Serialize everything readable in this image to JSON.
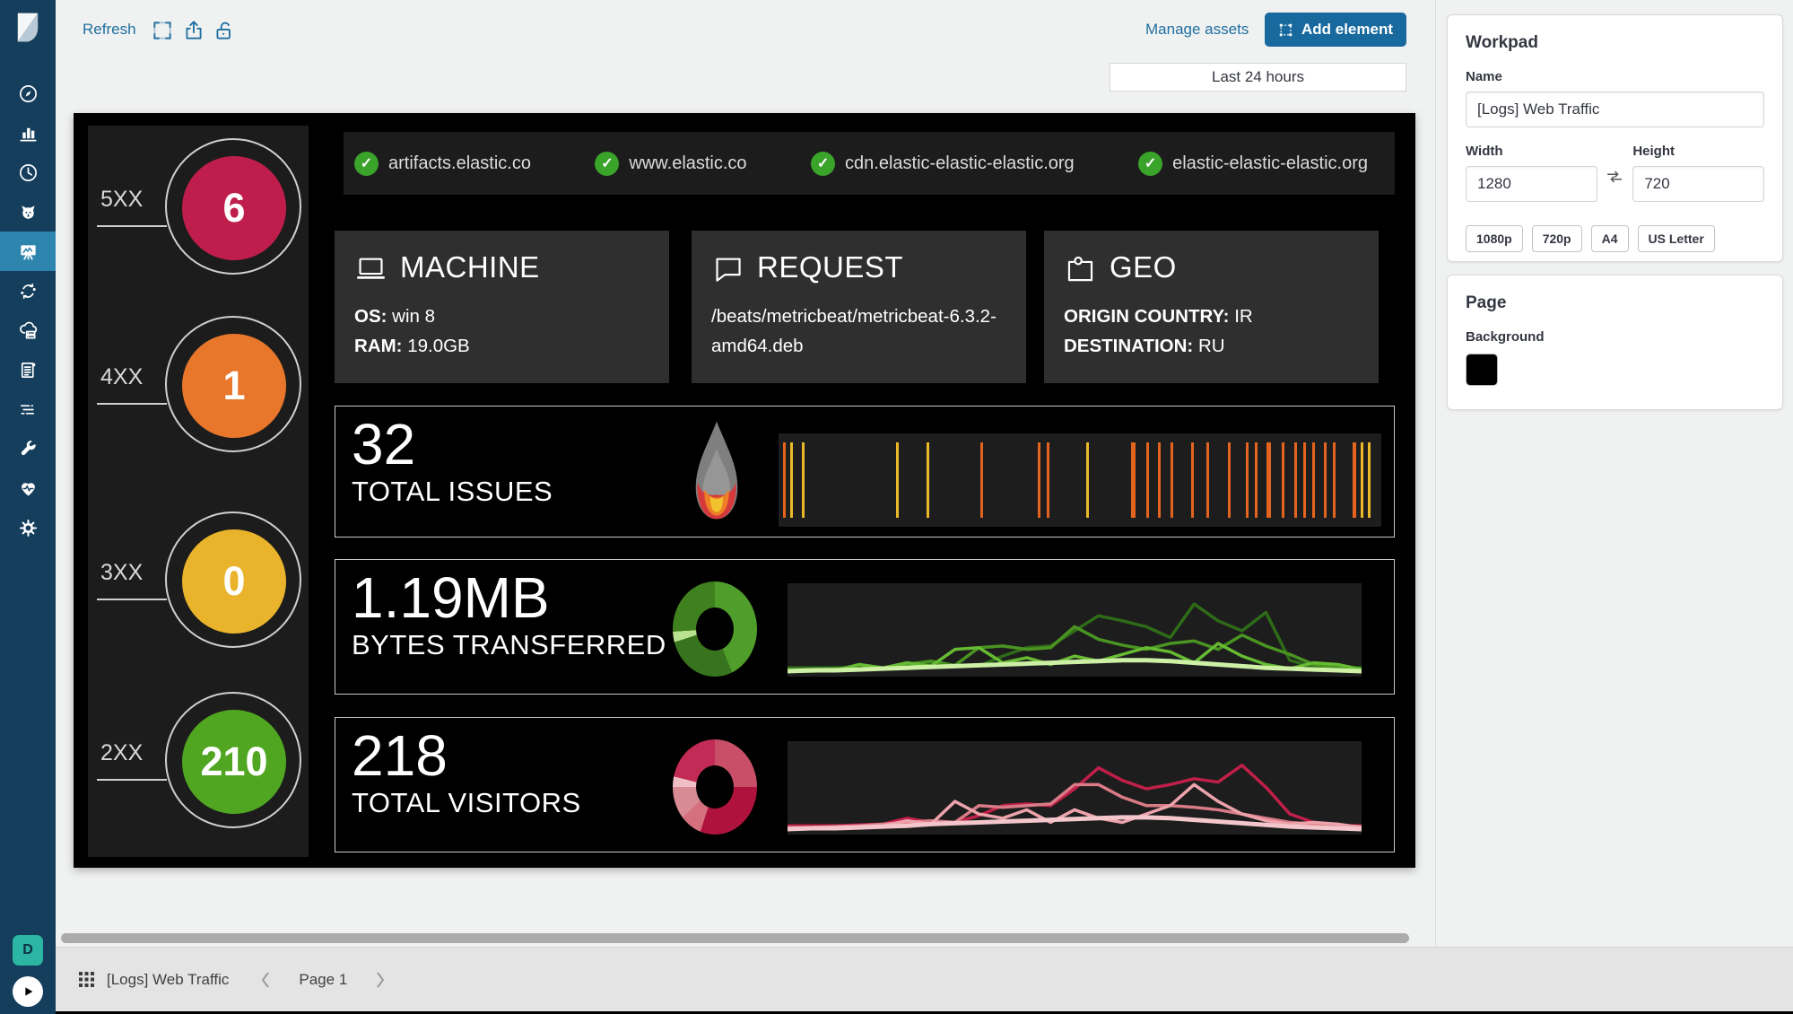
{
  "toolbar": {
    "refresh": "Refresh",
    "manage_assets": "Manage assets",
    "add_element": "Add element",
    "time_filter": "Last 24 hours"
  },
  "sidebar": {
    "avatar": "D",
    "items": [
      {
        "name": "discover",
        "icon": "compass",
        "active": false
      },
      {
        "name": "visualize",
        "icon": "bar-chart",
        "active": false
      },
      {
        "name": "timelion",
        "icon": "clock",
        "active": false
      },
      {
        "name": "uptime",
        "icon": "dog",
        "active": false
      },
      {
        "name": "canvas",
        "icon": "easel",
        "active": true
      },
      {
        "name": "machine-learning",
        "icon": "cycle",
        "active": false
      },
      {
        "name": "infrastructure",
        "icon": "cloud-servers",
        "active": false
      },
      {
        "name": "logs",
        "icon": "document",
        "active": false
      },
      {
        "name": "apm",
        "icon": "stream-lines",
        "active": false
      },
      {
        "name": "dev-tools",
        "icon": "wrench",
        "active": false
      },
      {
        "name": "monitoring",
        "icon": "heartbeat",
        "active": false
      },
      {
        "name": "management",
        "icon": "gear",
        "active": false
      }
    ]
  },
  "workpad_panel": {
    "title": "Workpad",
    "name_label": "Name",
    "name_value": "[Logs] Web Traffic",
    "width_label": "Width",
    "width_value": "1280",
    "height_label": "Height",
    "height_value": "720",
    "presets": [
      "1080p",
      "720p",
      "A4",
      "US Letter"
    ],
    "page_title": "Page",
    "background_label": "Background",
    "background_color": "#000000"
  },
  "footer": {
    "workpad_name": "[Logs] Web Traffic",
    "page": "Page 1"
  },
  "canvas": {
    "cards": [
      {
        "icon": "laptop",
        "title": "MACHINE",
        "lines": [
          {
            "label": "OS:",
            "value": "win 8"
          },
          {
            "label": "RAM:",
            "value": "19.0GB"
          }
        ]
      },
      {
        "icon": "speech-bubble",
        "title": "REQUEST",
        "lines": [
          {
            "label": "",
            "value": "/beats/metricbeat/metricbeat-6.3.2-amd64.deb"
          }
        ]
      },
      {
        "icon": "geo-pin-map",
        "title": "GEO",
        "lines": [
          {
            "label": "ORIGIN COUNTRY:",
            "value": "IR"
          },
          {
            "label": "DESTINATION:",
            "value": "RU"
          }
        ]
      }
    ]
  },
  "chart_data": [
    {
      "id": "http_status_circles",
      "type": "metric-circles",
      "items": [
        {
          "label": "5XX",
          "value": "6",
          "color": "#bf1e4c"
        },
        {
          "label": "4XX",
          "value": "1",
          "color": "#e8772b"
        },
        {
          "label": "3XX",
          "value": "0",
          "color": "#e9b32b"
        },
        {
          "label": "2XX",
          "value": "210",
          "color": "#50a621"
        }
      ]
    },
    {
      "id": "domain_status",
      "type": "status-list",
      "ok_color": "#3aa32a",
      "items": [
        "artifacts.elastic.co",
        "www.elastic.co",
        "cdn.elastic-elastic-elastic.org",
        "elastic-elastic-elastic.org"
      ]
    },
    {
      "id": "total_issues",
      "type": "metric+event-ticks",
      "metric_value": "32",
      "metric_label": "TOTAL ISSUES",
      "tick_colors": {
        "o": "#e2641f",
        "y": "#eab829"
      },
      "ticks": [
        {
          "x": 0.8,
          "c": "o"
        },
        {
          "x": 2.0,
          "c": "y"
        },
        {
          "x": 3.8,
          "c": "y"
        },
        {
          "x": 19.5,
          "c": "y"
        },
        {
          "x": 24.5,
          "c": "y"
        },
        {
          "x": 33.5,
          "c": "o"
        },
        {
          "x": 43.0,
          "c": "o"
        },
        {
          "x": 44.5,
          "c": "o"
        },
        {
          "x": 51.0,
          "c": "y"
        },
        {
          "x": 58.5,
          "c": "o",
          "w": 5
        },
        {
          "x": 61.0,
          "c": "o"
        },
        {
          "x": 63.0,
          "c": "o"
        },
        {
          "x": 65.0,
          "c": "o"
        },
        {
          "x": 68.5,
          "c": "o"
        },
        {
          "x": 71.0,
          "c": "o"
        },
        {
          "x": 74.5,
          "c": "o"
        },
        {
          "x": 77.5,
          "c": "o"
        },
        {
          "x": 79.0,
          "c": "o"
        },
        {
          "x": 81.0,
          "c": "o",
          "w": 5
        },
        {
          "x": 83.5,
          "c": "o"
        },
        {
          "x": 85.5,
          "c": "o"
        },
        {
          "x": 87.0,
          "c": "o"
        },
        {
          "x": 88.5,
          "c": "o"
        },
        {
          "x": 90.5,
          "c": "o"
        },
        {
          "x": 92.0,
          "c": "o"
        },
        {
          "x": 95.3,
          "c": "o",
          "w": 4
        },
        {
          "x": 96.6,
          "c": "y"
        },
        {
          "x": 97.7,
          "c": "y"
        }
      ]
    },
    {
      "id": "bytes_transferred",
      "type": "metric+donut+multi-line",
      "metric_value": "1.19MB",
      "metric_label": "BYTES TRANSFERRED",
      "donut_segments": [
        {
          "color": "#4f9e2b",
          "from": 0,
          "to": 44
        },
        {
          "color": "#38731d",
          "from": 44,
          "to": 70
        },
        {
          "color": "#b9e18e",
          "from": 70,
          "to": 74
        },
        {
          "color": "#3f801f",
          "from": 74,
          "to": 100
        }
      ],
      "series": [
        {
          "name": "artifacts.elastic.co",
          "color": "#2e6b18",
          "width": 3.5,
          "values": [
            6,
            6,
            6,
            7,
            6,
            8,
            12,
            9,
            8,
            20,
            30,
            32,
            50,
            68,
            62,
            55,
            42,
            82,
            62,
            50,
            72,
            15,
            7,
            6,
            6
          ]
        },
        {
          "name": "www.elastic.co",
          "color": "#4a9422",
          "width": 3.5,
          "values": [
            4,
            4,
            5,
            5,
            6,
            10,
            14,
            9,
            30,
            32,
            28,
            30,
            55,
            40,
            33,
            28,
            35,
            38,
            28,
            45,
            32,
            22,
            10,
            6,
            5
          ]
        },
        {
          "name": "cdn.elastic-elastic-elastic.org",
          "color": "#66bb32",
          "width": 3.5,
          "values": [
            2,
            2,
            3,
            10,
            6,
            12,
            8,
            28,
            30,
            12,
            18,
            10,
            20,
            14,
            22,
            30,
            25,
            12,
            35,
            20,
            10,
            5,
            12,
            10,
            4
          ]
        },
        {
          "name": "elastic-elastic-elastic.org",
          "color": "#cdf0a6",
          "width": 5,
          "values": [
            2,
            3,
            3,
            4,
            5,
            6,
            7,
            8,
            9,
            10,
            11,
            12,
            13,
            14,
            15,
            15,
            14,
            12,
            10,
            8,
            6,
            5,
            4,
            3,
            2
          ]
        }
      ]
    },
    {
      "id": "total_visitors",
      "type": "metric+donut+multi-line",
      "metric_value": "218",
      "metric_label": "TOTAL VISITORS",
      "donut_segments": [
        {
          "color": "#c84f67",
          "from": 0,
          "to": 25
        },
        {
          "color": "#b0123e",
          "from": 25,
          "to": 55
        },
        {
          "color": "#d5717f",
          "from": 55,
          "to": 63
        },
        {
          "color": "#d98b95",
          "from": 63,
          "to": 75
        },
        {
          "color": "#f0bfc5",
          "from": 75,
          "to": 79
        },
        {
          "color": "#c22b55",
          "from": 79,
          "to": 100
        }
      ],
      "series": [
        {
          "name": "artifacts.elastic.co",
          "color": "#c01f49",
          "width": 3.5,
          "values": [
            6,
            6,
            6,
            7,
            8,
            15,
            10,
            10,
            18,
            30,
            32,
            30,
            50,
            75,
            60,
            50,
            55,
            62,
            58,
            78,
            52,
            20,
            10,
            6,
            6
          ]
        },
        {
          "name": "www.elastic.co",
          "color": "#d97b86",
          "width": 3.5,
          "values": [
            4,
            4,
            5,
            6,
            8,
            10,
            12,
            10,
            30,
            28,
            30,
            32,
            55,
            55,
            40,
            30,
            30,
            28,
            25,
            20,
            15,
            10,
            8,
            6,
            5
          ]
        },
        {
          "name": "cdn.elastic-elastic-elastic.org",
          "color": "#eda3ab",
          "width": 3.5,
          "values": [
            2,
            3,
            4,
            5,
            6,
            12,
            8,
            35,
            20,
            15,
            25,
            10,
            25,
            15,
            10,
            20,
            30,
            55,
            35,
            20,
            12,
            8,
            10,
            8,
            4
          ]
        },
        {
          "name": "elastic-elastic-elastic.org",
          "color": "#f2c6ca",
          "width": 5,
          "values": [
            2,
            3,
            3,
            4,
            5,
            6,
            8,
            9,
            10,
            11,
            12,
            13,
            14,
            15,
            16,
            16,
            15,
            13,
            11,
            9,
            7,
            5,
            4,
            3,
            2
          ]
        }
      ]
    }
  ]
}
